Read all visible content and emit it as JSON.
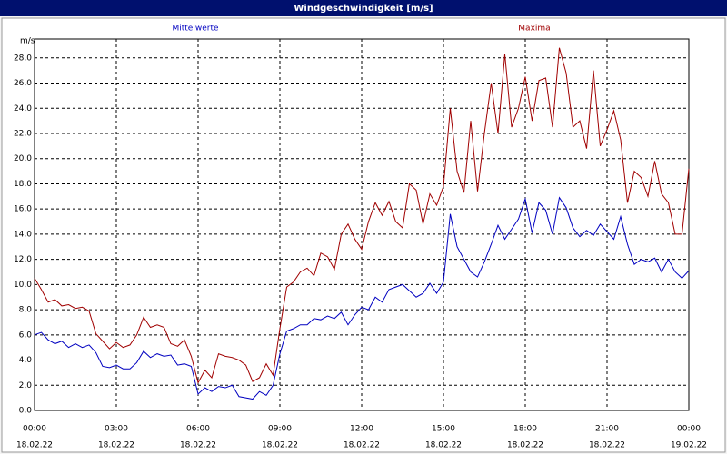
{
  "chart_data": {
    "type": "line",
    "title": "Windgeschwindigkeit [m/s]",
    "ylabel": "m/s",
    "x": [
      0,
      0.25,
      0.5,
      0.75,
      1,
      1.25,
      1.5,
      1.75,
      2,
      2.25,
      2.5,
      2.75,
      3,
      3.25,
      3.5,
      3.75,
      4,
      4.25,
      4.5,
      4.75,
      5,
      5.25,
      5.5,
      5.75,
      6,
      6.25,
      6.5,
      6.75,
      7,
      7.25,
      7.5,
      7.75,
      8,
      8.25,
      8.5,
      8.75,
      9,
      9.25,
      9.5,
      9.75,
      10,
      10.25,
      10.5,
      10.75,
      11,
      11.25,
      11.5,
      11.75,
      12,
      12.25,
      12.5,
      12.75,
      13,
      13.25,
      13.5,
      13.75,
      14,
      14.25,
      14.5,
      14.75,
      15,
      15.25,
      15.5,
      15.75,
      16,
      16.25,
      16.5,
      16.75,
      17,
      17.25,
      17.5,
      17.75,
      18,
      18.25,
      18.5,
      18.75,
      19,
      19.25,
      19.5,
      19.75,
      20,
      20.25,
      20.5,
      20.75,
      21,
      21.25,
      21.5,
      21.75,
      22,
      22.25,
      22.5,
      22.75,
      23,
      23.25,
      23.5,
      23.75,
      24
    ],
    "series": [
      {
        "name": "Mittelwerte",
        "color": "#0000c0",
        "values": [
          6.0,
          6.2,
          5.6,
          5.3,
          5.5,
          5.0,
          5.3,
          5.0,
          5.2,
          4.6,
          3.5,
          3.4,
          3.6,
          3.3,
          3.3,
          3.8,
          4.7,
          4.2,
          4.5,
          4.3,
          4.4,
          3.6,
          3.7,
          3.5,
          1.3,
          1.8,
          1.5,
          1.9,
          1.8,
          2.0,
          1.1,
          1.0,
          0.9,
          1.5,
          1.2,
          2.0,
          4.5,
          6.3,
          6.5,
          6.8,
          6.8,
          7.3,
          7.2,
          7.5,
          7.3,
          7.8,
          6.8,
          7.6,
          8.2,
          8.0,
          9.0,
          8.6,
          9.6,
          9.8,
          10.0,
          9.5,
          9.0,
          9.3,
          10.1,
          9.3,
          10.2,
          15.6,
          13.0,
          12.0,
          11.0,
          10.6,
          11.8,
          13.2,
          14.7,
          13.6,
          14.4,
          15.2,
          16.8,
          14.1,
          16.5,
          15.9,
          14.0,
          16.9,
          16.1,
          14.5,
          13.8,
          14.3,
          13.9,
          14.8,
          14.2,
          13.6,
          15.4,
          13.2,
          11.6,
          12.0,
          11.8,
          12.1,
          11.0,
          12.0,
          11.0,
          10.5,
          11.1
        ]
      },
      {
        "name": "Maxima",
        "color": "#a00000",
        "values": [
          10.5,
          9.6,
          8.6,
          8.8,
          8.3,
          8.4,
          8.1,
          8.2,
          7.9,
          6.1,
          5.5,
          4.9,
          5.4,
          5.0,
          5.2,
          6.0,
          7.4,
          6.6,
          6.8,
          6.6,
          5.3,
          5.1,
          5.6,
          4.3,
          2.2,
          3.2,
          2.6,
          4.5,
          4.3,
          4.2,
          4.0,
          3.6,
          2.3,
          2.6,
          3.7,
          2.8,
          6.5,
          9.8,
          10.2,
          11.0,
          11.3,
          10.7,
          12.5,
          12.2,
          11.2,
          14.0,
          14.8,
          13.6,
          12.8,
          15.0,
          16.5,
          15.5,
          16.6,
          15.0,
          14.5,
          18.0,
          17.5,
          14.8,
          17.2,
          16.3,
          17.8,
          24.0,
          19.0,
          17.3,
          23.0,
          17.4,
          22.0,
          26.0,
          22.0,
          28.3,
          22.5,
          24.0,
          26.5,
          23.0,
          26.2,
          26.4,
          22.5,
          28.8,
          26.8,
          22.5,
          23.0,
          20.8,
          27.0,
          21.0,
          22.3,
          23.8,
          21.5,
          16.5,
          19.0,
          18.5,
          17.0,
          19.8,
          17.2,
          16.5,
          14.0,
          14.0,
          19.2
        ]
      }
    ],
    "xlim": [
      0,
      24
    ],
    "xticks": [
      {
        "value": 0,
        "label": "00:00",
        "date": "18.02.22"
      },
      {
        "value": 3,
        "label": "03:00",
        "date": "18.02.22"
      },
      {
        "value": 6,
        "label": "06:00",
        "date": "18.02.22"
      },
      {
        "value": 9,
        "label": "09:00",
        "date": "18.02.22"
      },
      {
        "value": 12,
        "label": "12:00",
        "date": "18.02.22"
      },
      {
        "value": 15,
        "label": "15:00",
        "date": "18.02.22"
      },
      {
        "value": 18,
        "label": "18:00",
        "date": "18.02.22"
      },
      {
        "value": 21,
        "label": "21:00",
        "date": "18.02.22"
      },
      {
        "value": 24,
        "label": "00:00",
        "date": "19.02.22"
      }
    ],
    "ylim": [
      0,
      29.5
    ],
    "yticks": [
      {
        "value": 0,
        "label": "0,0"
      },
      {
        "value": 2,
        "label": "2,0"
      },
      {
        "value": 4,
        "label": "4,0"
      },
      {
        "value": 6,
        "label": "6,0"
      },
      {
        "value": 8,
        "label": "8,0"
      },
      {
        "value": 10,
        "label": "10,0"
      },
      {
        "value": 12,
        "label": "12,0"
      },
      {
        "value": 14,
        "label": "14,0"
      },
      {
        "value": 16,
        "label": "16,0"
      },
      {
        "value": 18,
        "label": "18,0"
      },
      {
        "value": 20,
        "label": "20,0"
      },
      {
        "value": 22,
        "label": "22,0"
      },
      {
        "value": 24,
        "label": "24,0"
      },
      {
        "value": 26,
        "label": "26,0"
      },
      {
        "value": 28,
        "label": "28,0"
      }
    ],
    "grid": true
  }
}
